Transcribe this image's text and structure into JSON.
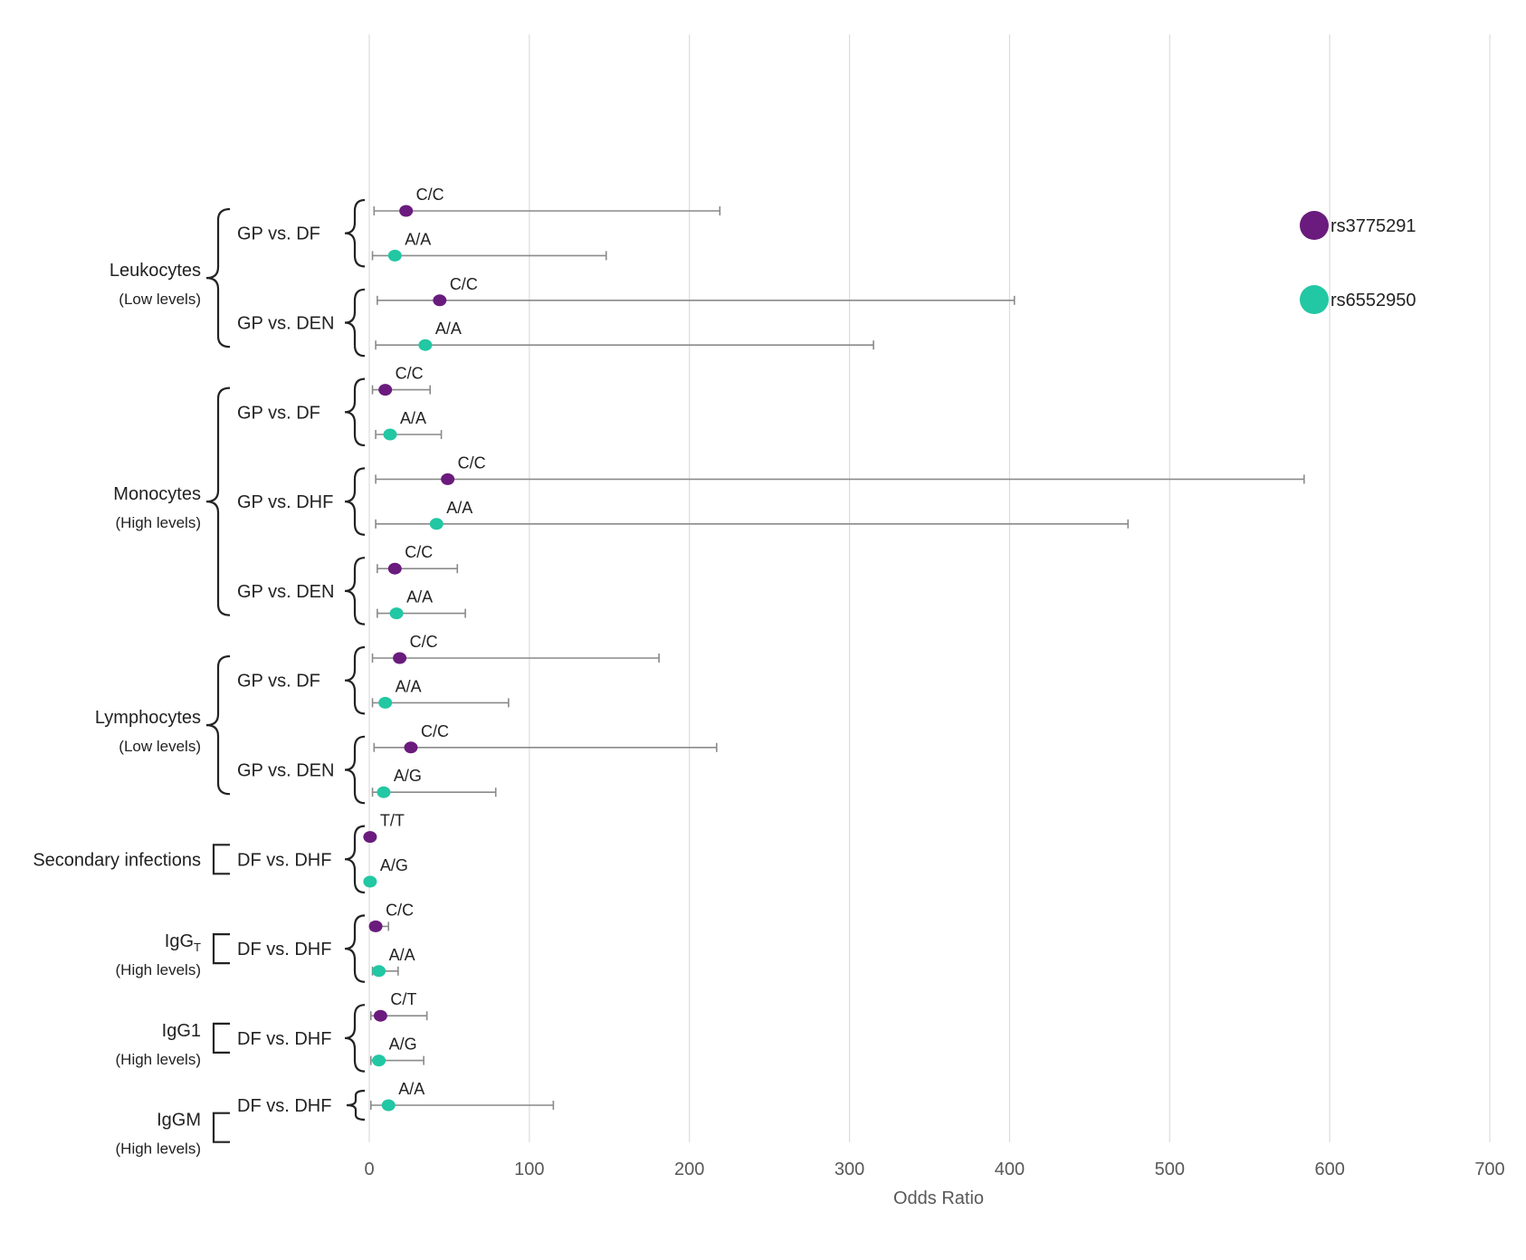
{
  "chart_data": {
    "type": "scatter",
    "subtype": "forest-plot",
    "title": "",
    "xlabel": "Odds Ratio",
    "ylabel": "",
    "xlim": [
      0,
      700
    ],
    "xticks": [
      0,
      100,
      200,
      300,
      400,
      500,
      600,
      700
    ],
    "grid": true,
    "legend": {
      "position": "top-right",
      "entries": [
        {
          "name": "rs3775291",
          "color": "#6a1b7d"
        },
        {
          "name": "rs6552950",
          "color": "#22c7a3"
        }
      ]
    },
    "series": [
      {
        "name": "rs3775291",
        "color": "#6a1b7d"
      },
      {
        "name": "rs6552950",
        "color": "#22c7a3"
      }
    ],
    "categories": [
      {
        "name": "Leukocytes",
        "subtitle": "(Low levels)",
        "comparisons": [
          {
            "label": "GP vs. DF",
            "points": [
              {
                "series": "rs3775291",
                "genotype": "C/C",
                "or": 23,
                "lo": 3,
                "hi": 219
              },
              {
                "series": "rs6552950",
                "genotype": "A/A",
                "or": 16,
                "lo": 2,
                "hi": 148
              }
            ]
          },
          {
            "label": "GP vs. DEN",
            "points": [
              {
                "series": "rs3775291",
                "genotype": "C/C",
                "or": 44,
                "lo": 5,
                "hi": 403
              },
              {
                "series": "rs6552950",
                "genotype": "A/A",
                "or": 35,
                "lo": 4,
                "hi": 315
              }
            ]
          }
        ]
      },
      {
        "name": "Monocytes",
        "subtitle": "(High levels)",
        "comparisons": [
          {
            "label": "GP vs. DF",
            "points": [
              {
                "series": "rs3775291",
                "genotype": "C/C",
                "or": 10,
                "lo": 2,
                "hi": 38
              },
              {
                "series": "rs6552950",
                "genotype": "A/A",
                "or": 13,
                "lo": 4,
                "hi": 45
              }
            ]
          },
          {
            "label": "GP vs. DHF",
            "points": [
              {
                "series": "rs3775291",
                "genotype": "C/C",
                "or": 49,
                "lo": 4,
                "hi": 584
              },
              {
                "series": "rs6552950",
                "genotype": "A/A",
                "or": 42,
                "lo": 4,
                "hi": 474
              }
            ]
          },
          {
            "label": "GP vs. DEN",
            "points": [
              {
                "series": "rs3775291",
                "genotype": "C/C",
                "or": 16,
                "lo": 5,
                "hi": 55
              },
              {
                "series": "rs6552950",
                "genotype": "A/A",
                "or": 17,
                "lo": 5,
                "hi": 60
              }
            ]
          }
        ]
      },
      {
        "name": "Lymphocytes",
        "subtitle": "(Low levels)",
        "comparisons": [
          {
            "label": "GP vs. DF",
            "points": [
              {
                "series": "rs3775291",
                "genotype": "C/C",
                "or": 19,
                "lo": 2,
                "hi": 181
              },
              {
                "series": "rs6552950",
                "genotype": "A/A",
                "or": 10,
                "lo": 2,
                "hi": 87
              }
            ]
          },
          {
            "label": "GP vs. DEN",
            "points": [
              {
                "series": "rs3775291",
                "genotype": "C/C",
                "or": 26,
                "lo": 3,
                "hi": 217
              },
              {
                "series": "rs6552950",
                "genotype": "A/G",
                "or": 9,
                "lo": 2,
                "hi": 79
              }
            ]
          }
        ]
      },
      {
        "name": "Secondary infections",
        "subtitle": "",
        "comparisons": [
          {
            "label": "DF vs. DHF",
            "points": [
              {
                "series": "rs3775291",
                "genotype": "T/T",
                "or": 0.5,
                "lo": 0.1,
                "hi": 1.2
              },
              {
                "series": "rs6552950",
                "genotype": "A/G",
                "or": 0.5,
                "lo": 0.1,
                "hi": 1.1
              }
            ]
          }
        ]
      },
      {
        "name": "IgG",
        "name_subscript": "T",
        "subtitle": "(High levels)",
        "comparisons": [
          {
            "label": "DF vs. DHF",
            "points": [
              {
                "series": "rs3775291",
                "genotype": "C/C",
                "or": 4,
                "lo": 1,
                "hi": 12
              },
              {
                "series": "rs6552950",
                "genotype": "A/A",
                "or": 6,
                "lo": 2,
                "hi": 18
              }
            ]
          }
        ]
      },
      {
        "name": "IgG1",
        "subtitle": "(High levels)",
        "comparisons": [
          {
            "label": "DF vs. DHF",
            "points": [
              {
                "series": "rs3775291",
                "genotype": "C/T",
                "or": 7,
                "lo": 1,
                "hi": 36
              },
              {
                "series": "rs6552950",
                "genotype": "A/G",
                "or": 6,
                "lo": 1,
                "hi": 34
              }
            ]
          }
        ]
      },
      {
        "name": "IgGM",
        "subtitle": "(High levels)",
        "comparisons": [
          {
            "label": "DF vs. DHF",
            "points": [
              {
                "series": "rs6552950",
                "genotype": "A/A",
                "or": 12,
                "lo": 1,
                "hi": 115
              }
            ]
          }
        ]
      }
    ]
  }
}
